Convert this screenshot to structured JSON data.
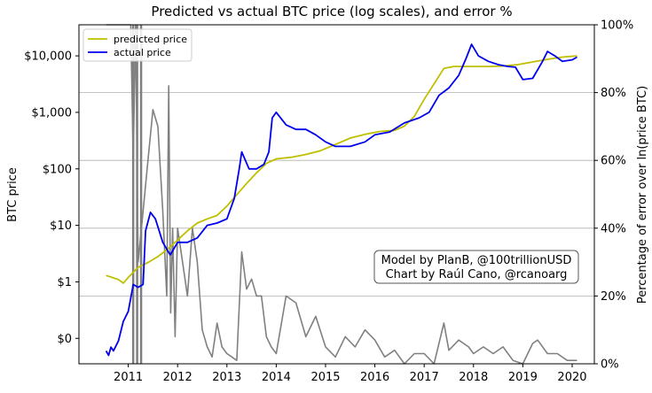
{
  "chart_data": {
    "type": "line",
    "title": "Predicted vs actual BTC price (log scales), and error %",
    "ylabel": "BTC price",
    "y2label": "Percentage of error over ln(price BTC)",
    "x_ticks": [
      "2011",
      "2012",
      "2013",
      "2014",
      "2015",
      "2016",
      "2017",
      "2018",
      "2019",
      "2020"
    ],
    "y_ticks": [
      "$0",
      "$1",
      "$10",
      "$100",
      "$1,000",
      "$10,000"
    ],
    "y2_ticks": [
      "0%",
      "20%",
      "40%",
      "60%",
      "80%",
      "100%"
    ],
    "y_scale": "log",
    "y2_range": [
      0,
      100
    ],
    "xlim": [
      2010.0,
      2020.45
    ],
    "ylim_log10": [
      -1.45,
      4.55
    ],
    "grid": "y2-major",
    "legend_position": "top-left",
    "legend": [
      "predicted price",
      "actual price"
    ],
    "annotation": [
      "Model by PlanB, @100trillionUSD",
      "Chart by Raúl Cano, @rcanoarg"
    ],
    "series": [
      {
        "name": "predicted price",
        "axis": "left",
        "color": "#bfbf00",
        "x": [
          2010.55,
          2010.8,
          2010.9,
          2011.0,
          2011.2,
          2011.4,
          2011.6,
          2011.8,
          2012.0,
          2012.2,
          2012.4,
          2012.6,
          2012.8,
          2013.0,
          2013.2,
          2013.4,
          2013.6,
          2013.8,
          2014.0,
          2014.3,
          2014.6,
          2014.9,
          2015.2,
          2015.5,
          2015.8,
          2016.1,
          2016.4,
          2016.6,
          2016.8,
          2017.0,
          2017.2,
          2017.4,
          2017.6,
          2017.8,
          2018.0,
          2018.3,
          2018.6,
          2018.9,
          2019.2,
          2019.5,
          2019.8,
          2020.1
        ],
        "y": [
          1.3,
          1.1,
          0.95,
          1.2,
          1.8,
          2.2,
          2.8,
          3.8,
          5.5,
          8,
          11,
          13,
          15,
          22,
          35,
          55,
          85,
          125,
          150,
          160,
          180,
          210,
          270,
          350,
          410,
          460,
          480,
          570,
          850,
          1700,
          3200,
          6000,
          6500,
          6500,
          6500,
          6500,
          6600,
          7000,
          7800,
          8700,
          9500,
          10000
        ]
      },
      {
        "name": "actual price",
        "axis": "left",
        "color": "#0000ee",
        "x": [
          2010.55,
          2010.6,
          2010.65,
          2010.7,
          2010.8,
          2010.9,
          2011.0,
          2011.1,
          2011.2,
          2011.3,
          2011.35,
          2011.45,
          2011.55,
          2011.7,
          2011.85,
          2012.0,
          2012.2,
          2012.4,
          2012.6,
          2012.8,
          2013.0,
          2013.15,
          2013.25,
          2013.3,
          2013.45,
          2013.6,
          2013.75,
          2013.85,
          2013.92,
          2014.0,
          2014.2,
          2014.4,
          2014.6,
          2014.8,
          2015.0,
          2015.2,
          2015.5,
          2015.8,
          2016.0,
          2016.3,
          2016.6,
          2016.9,
          2017.1,
          2017.3,
          2017.5,
          2017.7,
          2017.85,
          2017.96,
          2018.1,
          2018.3,
          2018.5,
          2018.7,
          2018.85,
          2019.0,
          2019.2,
          2019.4,
          2019.5,
          2019.65,
          2019.8,
          2020.0,
          2020.1
        ],
        "y": [
          0.06,
          0.05,
          0.07,
          0.06,
          0.09,
          0.2,
          0.3,
          0.9,
          0.8,
          0.9,
          8,
          17,
          13,
          5,
          3,
          5,
          5,
          6,
          10,
          11,
          13,
          30,
          100,
          200,
          100,
          100,
          120,
          200,
          800,
          1000,
          600,
          500,
          500,
          400,
          300,
          250,
          250,
          300,
          400,
          450,
          650,
          800,
          1000,
          2000,
          2700,
          4500,
          9000,
          16000,
          10000,
          8000,
          7000,
          6500,
          6300,
          3800,
          4000,
          8000,
          12000,
          10000,
          8000,
          8500,
          9500
        ]
      },
      {
        "name": "error",
        "axis": "right",
        "color": "#808080",
        "x": [
          2010.55,
          2010.7,
          2010.9,
          2011.05,
          2011.1,
          2011.15,
          2011.2,
          2011.3,
          2011.4,
          2011.5,
          2011.6,
          2011.7,
          2011.78,
          2011.82,
          2011.86,
          2011.9,
          2011.95,
          2012.0,
          2012.1,
          2012.2,
          2012.3,
          2012.4,
          2012.5,
          2012.6,
          2012.7,
          2012.8,
          2012.9,
          2013.0,
          2013.1,
          2013.2,
          2013.3,
          2013.4,
          2013.5,
          2013.6,
          2013.7,
          2013.8,
          2013.9,
          2014.0,
          2014.2,
          2014.4,
          2014.6,
          2014.8,
          2015.0,
          2015.2,
          2015.4,
          2015.6,
          2015.8,
          2016.0,
          2016.2,
          2016.4,
          2016.6,
          2016.8,
          2017.0,
          2017.2,
          2017.4,
          2017.5,
          2017.7,
          2017.9,
          2018.0,
          2018.2,
          2018.4,
          2018.6,
          2018.8,
          2019.0,
          2019.2,
          2019.3,
          2019.5,
          2019.7,
          2019.9,
          2020.1
        ],
        "y": [
          100,
          100,
          100,
          100,
          60,
          100,
          30,
          45,
          60,
          75,
          70,
          45,
          20,
          82,
          15,
          40,
          8,
          40,
          30,
          20,
          40,
          30,
          10,
          5,
          2,
          12,
          5,
          3,
          2,
          1,
          33,
          22,
          25,
          20,
          20,
          8,
          5,
          3,
          20,
          18,
          8,
          14,
          5,
          2,
          8,
          5,
          10,
          7,
          2,
          4,
          0,
          3,
          3,
          0,
          12,
          4,
          7,
          5,
          3,
          5,
          3,
          5,
          1,
          0,
          6,
          7,
          3,
          3,
          1,
          1
        ]
      }
    ],
    "vertical_markers": {
      "color": "#808080",
      "x": [
        2011.1,
        2011.18,
        2011.26
      ]
    }
  }
}
